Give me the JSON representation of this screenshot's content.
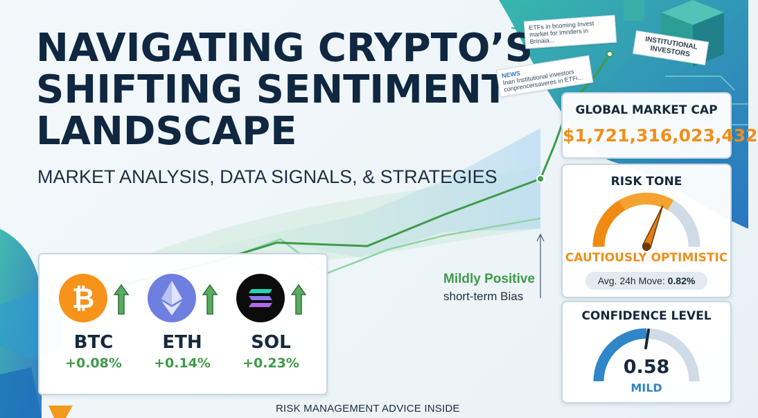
{
  "title_lines": [
    "NAVIGATING CRYPTO’S",
    "SHIFTING SENTIMENT",
    "LANDSCAPE"
  ],
  "subtitle": "MARKET ANALYSIS, DATA SIGNALS, & STRATEGIES",
  "news": {
    "card1": "ETFs in bcoming Invest market for Imnders in Brinaia...",
    "card2_tag": "NEWS",
    "card2_text": "Inan Institutional investors conprencersaveres in ETFi...",
    "institutional_label": "INSTITUTIONAL INVESTORS"
  },
  "bias": {
    "main": "Mildly Positive",
    "sub": "short-term Bias"
  },
  "market_cap": {
    "title": "GLOBAL MARKET CAP",
    "value": "$1,721,316,023,432"
  },
  "risk_tone": {
    "title": "RISK TONE",
    "value": "CAUTIOUSLY OPTIMISTIC",
    "avg_label": "Avg. 24h Move:",
    "avg_value": "0.82%",
    "gauge_level": 0.62
  },
  "confidence": {
    "title": "CONFIDENCE LEVEL",
    "value": "0.58",
    "label": "MILD"
  },
  "coins": [
    {
      "name": "BTC",
      "change": "+0.08%",
      "icon": "bitcoin-icon",
      "color": "#f7931a",
      "trend": "up"
    },
    {
      "name": "ETH",
      "change": "+0.14%",
      "icon": "ethereum-icon",
      "color": "#6f7fe0",
      "trend": "up"
    },
    {
      "name": "SOL",
      "change": "+0.23%",
      "icon": "solana-icon",
      "color": "#0c0c0c",
      "trend": "up"
    }
  ],
  "footer": "RISK MANAGEMENT ADVICE INSIDE",
  "colors": {
    "accent_orange": "#ef8f1b",
    "positive_green": "#3f9a49",
    "navy": "#0f2740",
    "gauge_blue": "#2f86c8"
  }
}
